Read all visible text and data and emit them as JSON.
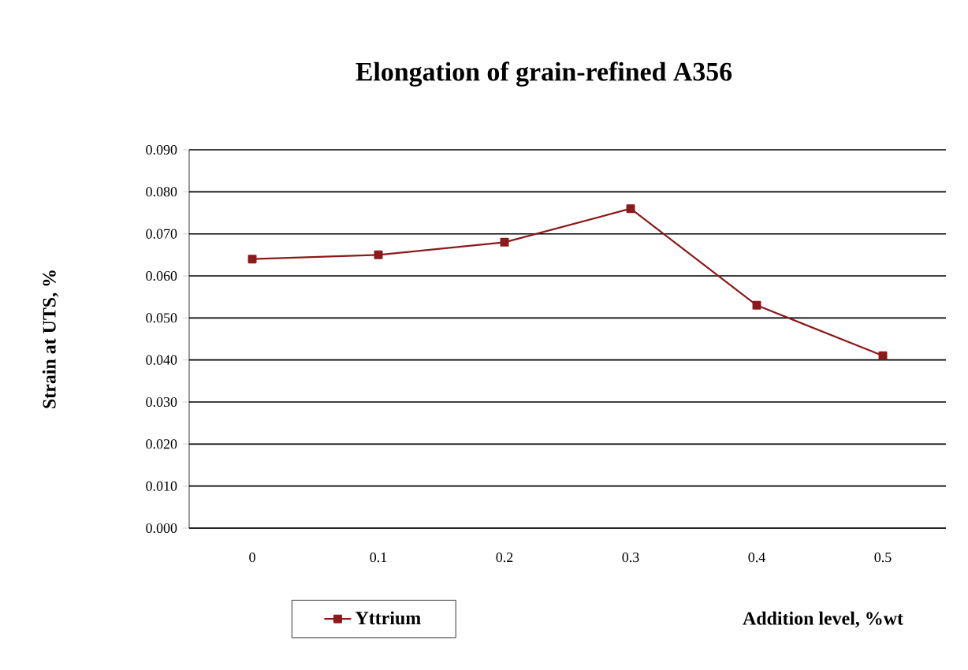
{
  "chart_data": {
    "type": "line",
    "title": "Elongation of grain-refined A356",
    "xlabel": "Addition level, %wt",
    "ylabel": "Strain at UTS, %",
    "categories": [
      "0",
      "0.1",
      "0.2",
      "0.3",
      "0.4",
      "0.5"
    ],
    "series": [
      {
        "name": "Yttrium",
        "color": "#8b1a1a",
        "values": [
          0.064,
          0.065,
          0.068,
          0.076,
          0.053,
          0.041
        ]
      }
    ],
    "ylim": [
      0,
      0.09
    ],
    "yticks": [
      {
        "value": 0,
        "label": "0.000"
      },
      {
        "value": 0.01,
        "label": "0.010"
      },
      {
        "value": 0.02,
        "label": "0.020"
      },
      {
        "value": 0.03,
        "label": "0.030"
      },
      {
        "value": 0.04,
        "label": "0.040"
      },
      {
        "value": 0.05,
        "label": "0.050"
      },
      {
        "value": 0.06,
        "label": "0.060"
      },
      {
        "value": 0.07,
        "label": "0.070"
      },
      {
        "value": 0.08,
        "label": "0.080"
      },
      {
        "value": 0.09,
        "label": "0.090"
      }
    ],
    "grid": "y",
    "legend": "bottom",
    "marker": "square",
    "line_style": "solid"
  }
}
